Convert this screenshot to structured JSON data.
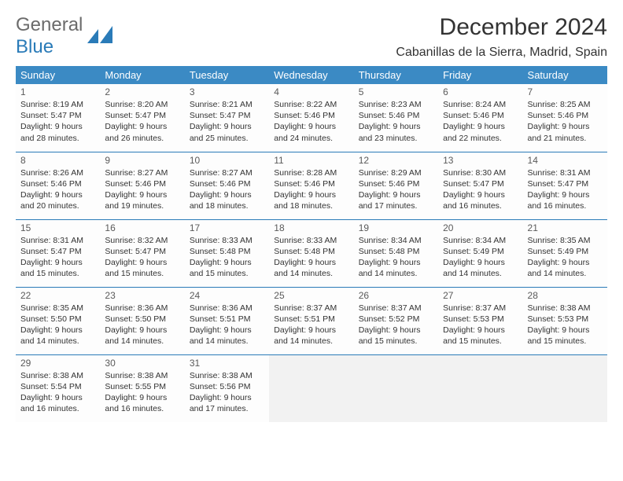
{
  "brand": {
    "part1": "General",
    "part2": "Blue"
  },
  "title": "December 2024",
  "location": "Cabanillas de la Sierra, Madrid, Spain",
  "header_bg": "#3b8ac4",
  "accent": "#2a7bb8",
  "weekdays": [
    "Sunday",
    "Monday",
    "Tuesday",
    "Wednesday",
    "Thursday",
    "Friday",
    "Saturday"
  ],
  "weeks": [
    [
      {
        "n": "1",
        "sunrise": "8:19 AM",
        "sunset": "5:47 PM",
        "day_h": "9",
        "day_m": "28"
      },
      {
        "n": "2",
        "sunrise": "8:20 AM",
        "sunset": "5:47 PM",
        "day_h": "9",
        "day_m": "26"
      },
      {
        "n": "3",
        "sunrise": "8:21 AM",
        "sunset": "5:47 PM",
        "day_h": "9",
        "day_m": "25"
      },
      {
        "n": "4",
        "sunrise": "8:22 AM",
        "sunset": "5:46 PM",
        "day_h": "9",
        "day_m": "24"
      },
      {
        "n": "5",
        "sunrise": "8:23 AM",
        "sunset": "5:46 PM",
        "day_h": "9",
        "day_m": "23"
      },
      {
        "n": "6",
        "sunrise": "8:24 AM",
        "sunset": "5:46 PM",
        "day_h": "9",
        "day_m": "22"
      },
      {
        "n": "7",
        "sunrise": "8:25 AM",
        "sunset": "5:46 PM",
        "day_h": "9",
        "day_m": "21"
      }
    ],
    [
      {
        "n": "8",
        "sunrise": "8:26 AM",
        "sunset": "5:46 PM",
        "day_h": "9",
        "day_m": "20"
      },
      {
        "n": "9",
        "sunrise": "8:27 AM",
        "sunset": "5:46 PM",
        "day_h": "9",
        "day_m": "19"
      },
      {
        "n": "10",
        "sunrise": "8:27 AM",
        "sunset": "5:46 PM",
        "day_h": "9",
        "day_m": "18"
      },
      {
        "n": "11",
        "sunrise": "8:28 AM",
        "sunset": "5:46 PM",
        "day_h": "9",
        "day_m": "18"
      },
      {
        "n": "12",
        "sunrise": "8:29 AM",
        "sunset": "5:46 PM",
        "day_h": "9",
        "day_m": "17"
      },
      {
        "n": "13",
        "sunrise": "8:30 AM",
        "sunset": "5:47 PM",
        "day_h": "9",
        "day_m": "16"
      },
      {
        "n": "14",
        "sunrise": "8:31 AM",
        "sunset": "5:47 PM",
        "day_h": "9",
        "day_m": "16"
      }
    ],
    [
      {
        "n": "15",
        "sunrise": "8:31 AM",
        "sunset": "5:47 PM",
        "day_h": "9",
        "day_m": "15"
      },
      {
        "n": "16",
        "sunrise": "8:32 AM",
        "sunset": "5:47 PM",
        "day_h": "9",
        "day_m": "15"
      },
      {
        "n": "17",
        "sunrise": "8:33 AM",
        "sunset": "5:48 PM",
        "day_h": "9",
        "day_m": "15"
      },
      {
        "n": "18",
        "sunrise": "8:33 AM",
        "sunset": "5:48 PM",
        "day_h": "9",
        "day_m": "14"
      },
      {
        "n": "19",
        "sunrise": "8:34 AM",
        "sunset": "5:48 PM",
        "day_h": "9",
        "day_m": "14"
      },
      {
        "n": "20",
        "sunrise": "8:34 AM",
        "sunset": "5:49 PM",
        "day_h": "9",
        "day_m": "14"
      },
      {
        "n": "21",
        "sunrise": "8:35 AM",
        "sunset": "5:49 PM",
        "day_h": "9",
        "day_m": "14"
      }
    ],
    [
      {
        "n": "22",
        "sunrise": "8:35 AM",
        "sunset": "5:50 PM",
        "day_h": "9",
        "day_m": "14"
      },
      {
        "n": "23",
        "sunrise": "8:36 AM",
        "sunset": "5:50 PM",
        "day_h": "9",
        "day_m": "14"
      },
      {
        "n": "24",
        "sunrise": "8:36 AM",
        "sunset": "5:51 PM",
        "day_h": "9",
        "day_m": "14"
      },
      {
        "n": "25",
        "sunrise": "8:37 AM",
        "sunset": "5:51 PM",
        "day_h": "9",
        "day_m": "14"
      },
      {
        "n": "26",
        "sunrise": "8:37 AM",
        "sunset": "5:52 PM",
        "day_h": "9",
        "day_m": "15"
      },
      {
        "n": "27",
        "sunrise": "8:37 AM",
        "sunset": "5:53 PM",
        "day_h": "9",
        "day_m": "15"
      },
      {
        "n": "28",
        "sunrise": "8:38 AM",
        "sunset": "5:53 PM",
        "day_h": "9",
        "day_m": "15"
      }
    ],
    [
      {
        "n": "29",
        "sunrise": "8:38 AM",
        "sunset": "5:54 PM",
        "day_h": "9",
        "day_m": "16"
      },
      {
        "n": "30",
        "sunrise": "8:38 AM",
        "sunset": "5:55 PM",
        "day_h": "9",
        "day_m": "16"
      },
      {
        "n": "31",
        "sunrise": "8:38 AM",
        "sunset": "5:56 PM",
        "day_h": "9",
        "day_m": "17"
      },
      null,
      null,
      null,
      null
    ]
  ]
}
